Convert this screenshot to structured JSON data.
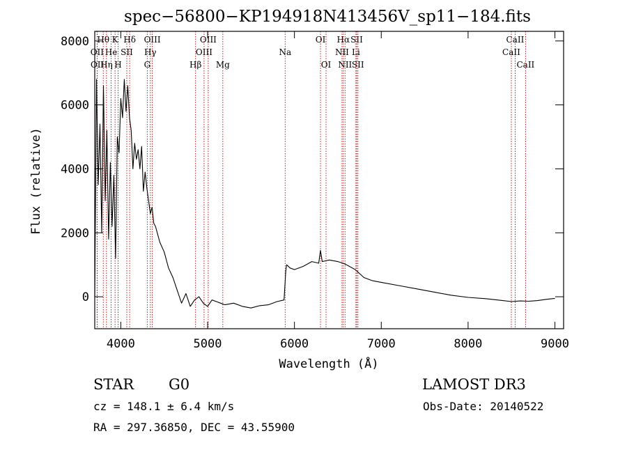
{
  "chart_data": {
    "type": "line",
    "title": "spec−56800−KP194918N413456V_sp11−184.fits",
    "xlabel": "Wavelength (Å)",
    "ylabel": "Flux (relative)",
    "xlim": [
      3700,
      9100
    ],
    "ylim": [
      -1000,
      8300
    ],
    "x_ticks": [
      4000,
      5000,
      6000,
      7000,
      8000,
      9000
    ],
    "y_ticks": [
      0,
      2000,
      4000,
      6000,
      8000
    ],
    "grid": false,
    "line_color": "#000000",
    "marker_color": "#c00000",
    "series": [
      {
        "x": [
          3700,
          3720,
          3740,
          3760,
          3780,
          3800,
          3820,
          3840,
          3860,
          3880,
          3900,
          3920,
          3940,
          3960,
          3980,
          4000,
          4020,
          4040,
          4060,
          4080,
          4100,
          4120,
          4140,
          4160,
          4180,
          4200,
          4220,
          4240,
          4260,
          4280,
          4300,
          4320,
          4340,
          4360,
          4380,
          4400,
          4450,
          4500,
          4550,
          4600,
          4650,
          4700,
          4750,
          4800,
          4850,
          4900,
          4950,
          5000,
          5050,
          5100,
          5150,
          5200,
          5300,
          5400,
          5500,
          5600,
          5700,
          5800,
          5880,
          5900,
          5910,
          5950,
          6000,
          6100,
          6200,
          6280,
          6300,
          6320,
          6400,
          6500,
          6560,
          6600,
          6700,
          6800,
          6900,
          7000,
          7200,
          7400,
          7600,
          7800,
          8000,
          8200,
          8400,
          8500,
          8600,
          8700,
          8800,
          8900,
          9000
        ],
        "y": [
          0,
          6800,
          3500,
          5400,
          2000,
          6600,
          3000,
          5200,
          1800,
          4200,
          2200,
          3800,
          1200,
          5000,
          4500,
          6200,
          5600,
          6800,
          5800,
          6600,
          5600,
          5200,
          4000,
          4800,
          4300,
          4600,
          4000,
          4700,
          3300,
          3900,
          3400,
          3000,
          2600,
          2800,
          2300,
          2200,
          1700,
          1400,
          900,
          600,
          200,
          -200,
          100,
          -300,
          -100,
          0,
          -200,
          -300,
          -100,
          -150,
          -200,
          -250,
          -200,
          -300,
          -350,
          -280,
          -250,
          -150,
          -100,
          800,
          1000,
          900,
          850,
          950,
          1100,
          1050,
          1450,
          1100,
          1150,
          1100,
          1050,
          1000,
          850,
          600,
          500,
          450,
          350,
          250,
          150,
          50,
          -20,
          -60,
          -120,
          -150,
          -130,
          -140,
          -120,
          -80,
          -50
        ]
      }
    ],
    "line_markers": [
      {
        "label": "Hθ",
        "x": 3798,
        "row": 1
      },
      {
        "label": "OII",
        "x": 3727,
        "row": 2
      },
      {
        "label": "OII",
        "x": 3729,
        "row": 3
      },
      {
        "label": "He",
        "x": 3889,
        "row": 2
      },
      {
        "label": "Hη",
        "x": 3835,
        "row": 3
      },
      {
        "label": "K",
        "x": 3934,
        "row": 1
      },
      {
        "label": "SII",
        "x": 4069,
        "row": 2
      },
      {
        "label": "H",
        "x": 3969,
        "row": 3
      },
      {
        "label": "Hδ",
        "x": 4102,
        "row": 1
      },
      {
        "label": "OIII",
        "x": 4363,
        "row": 1
      },
      {
        "label": "Hγ",
        "x": 4340,
        "row": 2
      },
      {
        "label": "G",
        "x": 4305,
        "row": 3
      },
      {
        "label": "OIII",
        "x": 5007,
        "row": 1
      },
      {
        "label": "OIII",
        "x": 4959,
        "row": 2
      },
      {
        "label": "Hβ",
        "x": 4861,
        "row": 3
      },
      {
        "label": "Mg",
        "x": 5175,
        "row": 3
      },
      {
        "label": "Na",
        "x": 5893,
        "row": 2
      },
      {
        "label": "OI",
        "x": 6300,
        "row": 1
      },
      {
        "label": "OI",
        "x": 6364,
        "row": 3
      },
      {
        "label": "Hα",
        "x": 6563,
        "row": 1
      },
      {
        "label": "SII",
        "x": 6717,
        "row": 1
      },
      {
        "label": "NII",
        "x": 6548,
        "row": 2
      },
      {
        "label": "Li",
        "x": 6708,
        "row": 2
      },
      {
        "label": "NII",
        "x": 6583,
        "row": 3
      },
      {
        "label": "SII",
        "x": 6731,
        "row": 3
      },
      {
        "label": "CaII",
        "x": 8542,
        "row": 1
      },
      {
        "label": "CaII",
        "x": 8498,
        "row": 2
      },
      {
        "label": "CaII",
        "x": 8662,
        "row": 3
      }
    ]
  },
  "info": {
    "object_class": "STAR",
    "subclass": "G0",
    "survey": "LAMOST DR3",
    "redshift_line": "cz = 148.1 ± 6.4 km/s",
    "obs_date": "Obs-Date: 20140522",
    "coords": "RA = 297.36850, DEC =  43.55900"
  }
}
